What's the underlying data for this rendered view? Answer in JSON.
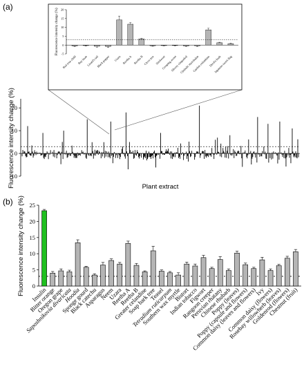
{
  "panel_a": {
    "label": "(a)",
    "ylabel": "Fluorescence intensity change (%)",
    "xlabel": "Plant extract",
    "yticks": [
      "20",
      "10",
      "0",
      "-10"
    ],
    "threshold": 3,
    "profile_count": 400,
    "highlight_index": 128
  },
  "panel_a_inset": {
    "ylabel": "Fluorescence intensity change (%)",
    "yticks": [
      "20",
      "15",
      "10",
      "5",
      "0",
      "-5"
    ]
  },
  "panel_b": {
    "label": "(b)",
    "ylabel": "Fluorescence intensity change (%)",
    "yticks": [
      "25",
      "20",
      "15",
      "10",
      "5",
      "0"
    ],
    "positive_color": "#1fc01f",
    "bar_color": "#b5b5b5",
    "threshold": 3
  },
  "chart_data": [
    {
      "type": "bar",
      "panel": "a-inset",
      "ylim": [
        -5,
        20
      ],
      "threshold": 3,
      "categories": [
        "Red rose child",
        "Bay bean",
        "Lizard's tail",
        "Black pepper",
        "Uzara",
        "Reetha A",
        "Reetha B",
        "Clove tree",
        "Stickwort",
        "Creeping avens",
        "Silvery cinquefoil",
        "Chebulic myrobalan",
        "Garden columbine",
        "Devil's bush",
        "Japanese sweet flag"
      ],
      "values": [
        -0.5,
        -0.3,
        -0.7,
        -0.8,
        14.2,
        11.8,
        3.5,
        -0.4,
        -0.3,
        -0.2,
        -0.5,
        -0.4,
        8.6,
        1.3,
        0.8
      ],
      "errors": [
        0.4,
        0.3,
        0.5,
        0.6,
        2.2,
        0.9,
        0.4,
        0.3,
        0.2,
        0.3,
        0.3,
        0.4,
        0.9,
        0.3,
        0.3
      ]
    },
    {
      "type": "bar",
      "panel": "b",
      "ylim": [
        0,
        25
      ],
      "threshold": 3,
      "categories": [
        "Insulin",
        "Bitter orange",
        "Oregon grape",
        "Saposhnikovia divaricata",
        "Hoodia",
        "Sponge gourd",
        "Black catechu",
        "Asparagus",
        "Neem",
        "Uzara",
        "Reetha A",
        "Reetha B",
        "Greater celandine",
        "Soap bark tree",
        "Teasel",
        "Tetradium ruticarpum",
        "Southern wax myrtle",
        "Bistort",
        "Indian tobacco",
        "Figwort",
        "Rangoon creeper",
        "Peruvian rhatany",
        "Chinese rhubarb",
        "Poppy (leaves)",
        "Poppy (capsule and flowers)",
        "Common daisy (leaves and flowers)",
        "Ivy",
        "Common daisy (flowers)",
        "Rosebay willowherb (leaves)",
        "Goldenrod (flowers)",
        "Chestnut (fruit)"
      ],
      "values": [
        23.3,
        4.0,
        4.7,
        4.4,
        13.4,
        5.8,
        3.4,
        6.5,
        7.9,
        6.8,
        13.2,
        6.4,
        4.4,
        10.9,
        4.6,
        4.1,
        3.4,
        6.8,
        6.2,
        8.8,
        5.4,
        8.2,
        4.8,
        10.2,
        6.6,
        5.4,
        8.1,
        4.8,
        6.3,
        8.6,
        10.6
      ],
      "errors": [
        0.4,
        0.5,
        0.6,
        0.5,
        0.9,
        0.3,
        0.4,
        0.8,
        0.5,
        0.5,
        0.7,
        0.6,
        0.3,
        1.4,
        0.4,
        0.4,
        0.7,
        0.6,
        0.6,
        0.7,
        0.4,
        0.9,
        0.5,
        0.6,
        0.5,
        0.4,
        0.8,
        0.5,
        0.4,
        0.6,
        0.7
      ]
    }
  ]
}
